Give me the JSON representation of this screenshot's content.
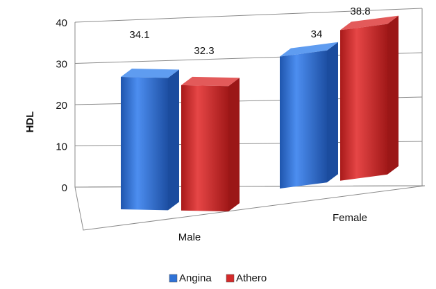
{
  "chart_data": {
    "type": "bar",
    "style": "3d-clustered-column",
    "categories": [
      "Male",
      "Female"
    ],
    "series": [
      {
        "name": "Angina",
        "values": [
          34.1,
          34
        ],
        "color": "#2f72d6"
      },
      {
        "name": "Athero",
        "values": [
          32.3,
          38.8
        ],
        "color": "#d42a2a"
      }
    ],
    "data_labels": [
      [
        "34.1",
        "34"
      ],
      [
        "32.3",
        "38.8"
      ]
    ],
    "ylabel": "HDL",
    "xlabel": "",
    "ylim": [
      0,
      40
    ],
    "yticks": [
      0,
      10,
      20,
      30,
      40
    ],
    "grid": true,
    "legend_position": "bottom"
  }
}
